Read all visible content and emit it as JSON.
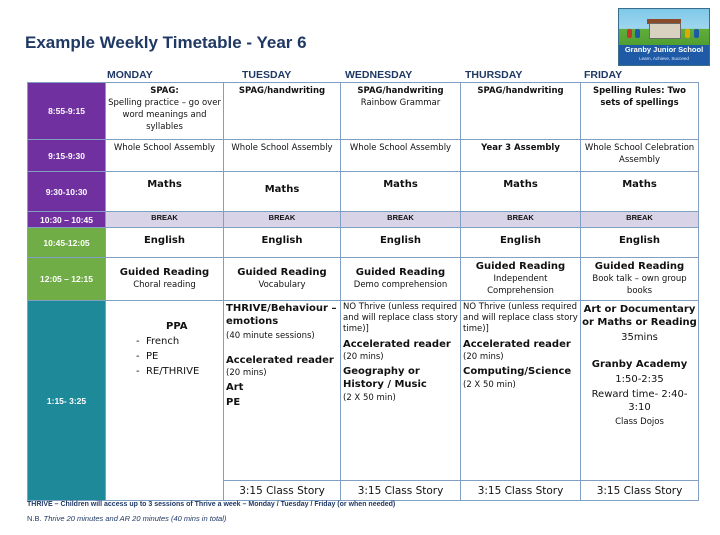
{
  "title": "Example Weekly Timetable - Year 6",
  "logo": {
    "school_name": "Granby Junior School",
    "tagline": "Learn, Achieve, Succeed"
  },
  "days": [
    "MONDAY",
    "TUESDAY",
    "WEDNESDAY",
    "THURSDAY",
    "FRIDAY"
  ],
  "times": {
    "t1": "8:55-9:15",
    "t2": "9:15-9:30",
    "t3": "9:30-10:30",
    "t4": "10:30 – 10:45",
    "t5": "10:45-12:05",
    "t6": "12:05 – 12:15",
    "t7": "1:15- 3:25"
  },
  "row1": {
    "mon_a": "SPAG:",
    "mon_b": "Spelling practice – go over word meanings and syllables",
    "tue": "SPAG/handwriting",
    "wed_a": "SPAG/handwriting",
    "wed_b": "Rainbow Grammar",
    "thu": "SPAG/handwriting",
    "fri": "Spelling Rules: Two sets of spellings"
  },
  "row2": {
    "mon": "Whole School Assembly",
    "tue": "Whole School Assembly",
    "wed": "Whole School Assembly",
    "thu": "Year 3 Assembly",
    "fri": "Whole School Celebration Assembly"
  },
  "row3": {
    "mon": "Maths",
    "tue": "Maths",
    "wed": "Maths",
    "thu": "Maths",
    "fri": "Maths"
  },
  "break_label": "BREAK",
  "row5": {
    "mon": "English",
    "tue": "English",
    "wed": "English",
    "thu": "English",
    "fri": "English"
  },
  "row6": {
    "mon_a": "Guided Reading",
    "mon_b": "Choral reading",
    "tue_a": "Guided Reading",
    "tue_b": "Vocabulary",
    "wed_a": "Guided Reading",
    "wed_b": "Demo comprehension",
    "thu_a": "Guided Reading",
    "thu_b": "Independent Comprehension",
    "fri_a": "Guided Reading",
    "fri_b": "Book talk – own group books"
  },
  "row7": {
    "mon_title": "PPA",
    "mon_items": [
      "French",
      "PE",
      "RE/THRIVE"
    ],
    "tue_a": "THRIVE/Behaviour – emotions",
    "tue_b": "(40 minute sessions)",
    "tue_c": "Accelerated reader",
    "tue_d": "(20 mins)",
    "tue_e": "Art",
    "tue_f": "PE",
    "wed_a": "NO Thrive (unless required and will replace class story time)]",
    "wed_b": "Accelerated reader",
    "wed_c": "(20 mins)",
    "wed_d": "Geography or History / Music",
    "wed_e": "(2 X 50 min)",
    "thu_a": "NO Thrive (unless required and will replace class story time)]",
    "thu_b": "Accelerated reader",
    "thu_c": "(20 mins)",
    "thu_d": "Computing/Science",
    "thu_e": "(2 X 50 min)",
    "fri_a": "Art or Documentary or Maths or Reading",
    "fri_b": "35mins",
    "fri_c": "Granby Academy",
    "fri_d": "1:50-2:35",
    "fri_e": "Reward time- 2:40-3:10",
    "fri_f": "Class Dojos"
  },
  "story": {
    "tue": "3:15 Class Story",
    "wed": "3:15 Class Story",
    "thu": "3:15 Class Story",
    "fri": "3:15 Class Story"
  },
  "notes": {
    "thrive_label": "THRIVE",
    "thrive_text": " – Children will access up to 3 sessions of Thrive a week – Monday / Tuesday / Friday (or when needed)",
    "nb_label": "N.B. ",
    "nb_text": "Thrive 20 minutes and AR 20 minutes (40 mins in total)"
  },
  "colors": {
    "title": "#1f3864",
    "purple": "#7030a0",
    "green": "#70ad47",
    "teal": "#1e8a99",
    "break": "#d9d3e8"
  }
}
